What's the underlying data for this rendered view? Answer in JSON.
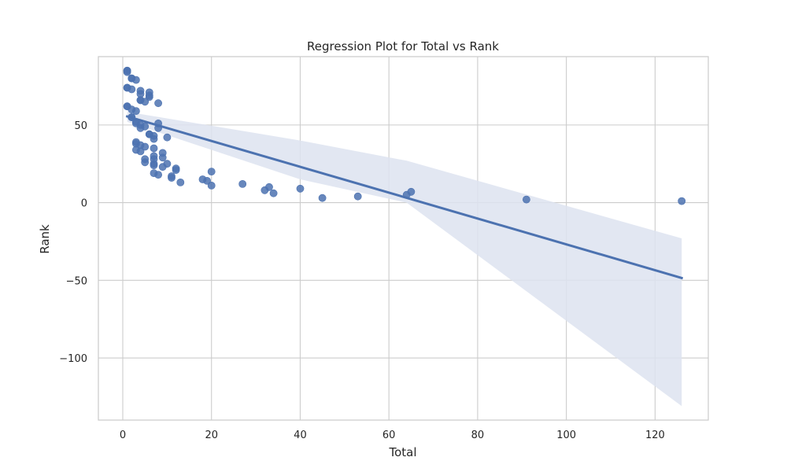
{
  "chart_data": {
    "type": "scatter",
    "title": "Regression Plot for Total vs Rank",
    "xlabel": "Total",
    "ylabel": "Rank",
    "xlim": [
      -5.5,
      132
    ],
    "ylim": [
      -140,
      94
    ],
    "xticks": [
      0,
      20,
      40,
      60,
      80,
      100,
      120
    ],
    "yticks": [
      50,
      0,
      -50,
      -100
    ],
    "ytick_labels": [
      "50",
      "0",
      "−50",
      "−100"
    ],
    "grid": true,
    "colors": {
      "points": "#4c72b0",
      "line": "#4c72b0",
      "band": "#dde3f0",
      "grid": "#cccccc",
      "frame": "#cccccc"
    },
    "points": [
      [
        1,
        85
      ],
      [
        1,
        84
      ],
      [
        1,
        85
      ],
      [
        2,
        80
      ],
      [
        2,
        80
      ],
      [
        3,
        79
      ],
      [
        1,
        74
      ],
      [
        1,
        74
      ],
      [
        2,
        73
      ],
      [
        4,
        72
      ],
      [
        4,
        70
      ],
      [
        6,
        71
      ],
      [
        6,
        68
      ],
      [
        6,
        69
      ],
      [
        4,
        66
      ],
      [
        4,
        66
      ],
      [
        5,
        65
      ],
      [
        8,
        64
      ],
      [
        1,
        62
      ],
      [
        1,
        62
      ],
      [
        2,
        60
      ],
      [
        3,
        59
      ],
      [
        2,
        55
      ],
      [
        2,
        55
      ],
      [
        3,
        52
      ],
      [
        3,
        51
      ],
      [
        4,
        50
      ],
      [
        4,
        48
      ],
      [
        5,
        49
      ],
      [
        8,
        51
      ],
      [
        8,
        48
      ],
      [
        6,
        44
      ],
      [
        6,
        44
      ],
      [
        7,
        43
      ],
      [
        7,
        41
      ],
      [
        10,
        42
      ],
      [
        3,
        39
      ],
      [
        3,
        38
      ],
      [
        4,
        37
      ],
      [
        4,
        33
      ],
      [
        5,
        36
      ],
      [
        3,
        34
      ],
      [
        7,
        35
      ],
      [
        9,
        32
      ],
      [
        9,
        29
      ],
      [
        7,
        30
      ],
      [
        7,
        28
      ],
      [
        5,
        28
      ],
      [
        5,
        26
      ],
      [
        7,
        25
      ],
      [
        7,
        24
      ],
      [
        9,
        23
      ],
      [
        10,
        25
      ],
      [
        12,
        22
      ],
      [
        12,
        21
      ],
      [
        7,
        19
      ],
      [
        8,
        18
      ],
      [
        11,
        17
      ],
      [
        11,
        16
      ],
      [
        13,
        13
      ],
      [
        18,
        15
      ],
      [
        19,
        14
      ],
      [
        20,
        20
      ],
      [
        20,
        11
      ],
      [
        27,
        12
      ],
      [
        32,
        8
      ],
      [
        33,
        10
      ],
      [
        34,
        6
      ],
      [
        40,
        9
      ],
      [
        45,
        3
      ],
      [
        53,
        4
      ],
      [
        64,
        5
      ],
      [
        65,
        7
      ],
      [
        91,
        2
      ],
      [
        126,
        1
      ]
    ],
    "regression": {
      "x_start": 1,
      "y_start": 55.5,
      "x_end": 126,
      "y_end": -48.5
    },
    "ci_band": {
      "x": [
        1,
        40,
        64,
        126
      ],
      "upper": [
        58.5,
        40,
        27,
        -23
      ],
      "lower": [
        52,
        15,
        0,
        -131
      ]
    }
  }
}
